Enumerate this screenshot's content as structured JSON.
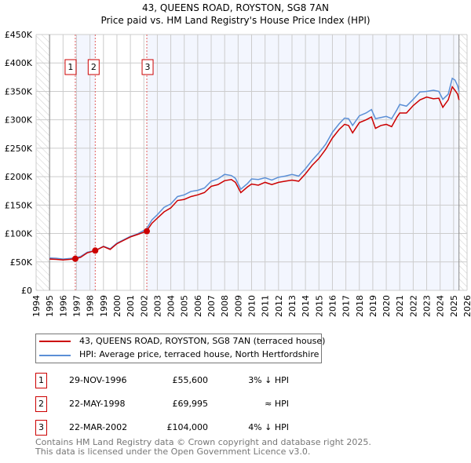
{
  "chart_data": {
    "type": "line",
    "title": "43, QUEENS ROAD, ROYSTON, SG8 7AN",
    "subtitle": "Price paid vs. HM Land Registry's House Price Index (HPI)",
    "xlim": [
      1994,
      2026
    ],
    "ylim": [
      0,
      450000
    ],
    "x_ticks": [
      "1994",
      "1995",
      "1996",
      "1997",
      "1998",
      "1999",
      "2000",
      "2001",
      "2002",
      "2003",
      "2004",
      "2005",
      "2006",
      "2007",
      "2008",
      "2009",
      "2010",
      "2011",
      "2012",
      "2013",
      "2014",
      "2015",
      "2016",
      "2017",
      "2018",
      "2019",
      "2020",
      "2021",
      "2022",
      "2023",
      "2024",
      "2025",
      "2026"
    ],
    "y_ticks": [
      {
        "v": 0,
        "l": "£0"
      },
      {
        "v": 50000,
        "l": "£50K"
      },
      {
        "v": 100000,
        "l": "£100K"
      },
      {
        "v": 150000,
        "l": "£150K"
      },
      {
        "v": 200000,
        "l": "£200K"
      },
      {
        "v": 250000,
        "l": "£250K"
      },
      {
        "v": 300000,
        "l": "£300K"
      },
      {
        "v": 350000,
        "l": "£350K"
      },
      {
        "v": 400000,
        "l": "£400K"
      },
      {
        "v": 450000,
        "l": "£450K"
      }
    ],
    "grid": true,
    "data_end": 2025.4,
    "series": [
      {
        "name": "43, QUEENS ROAD, ROYSTON, SG8 7AN (terraced house)",
        "color": "#cc0000",
        "x": [
          1995,
          1995.5,
          1996,
          1996.5,
          1996.9,
          1997.3,
          1997.8,
          1998.4,
          1999,
          1999.5,
          2000,
          2000.5,
          2001,
          2001.5,
          2002.2,
          2002.6,
          2003,
          2003.5,
          2004,
          2004.5,
          2005,
          2005.5,
          2006,
          2006.5,
          2007,
          2007.5,
          2008,
          2008.5,
          2008.8,
          2009.2,
          2009.7,
          2010,
          2010.5,
          2011,
          2011.5,
          2012,
          2012.5,
          2013,
          2013.5,
          2014,
          2014.5,
          2015,
          2015.5,
          2016,
          2016.5,
          2016.9,
          2017.2,
          2017.5,
          2018,
          2018.5,
          2018.9,
          2019.2,
          2019.6,
          2020,
          2020.4,
          2020.8,
          2021,
          2021.5,
          2022,
          2022.5,
          2023,
          2023.5,
          2023.9,
          2024.2,
          2024.6,
          2024.9,
          2025.1,
          2025.3,
          2025.4
        ],
        "y": [
          55000,
          54500,
          53500,
          54500,
          55600,
          58000,
          66000,
          69995,
          77000,
          72000,
          82000,
          88000,
          94000,
          98000,
          104000,
          118000,
          127000,
          138000,
          145000,
          158000,
          160000,
          165000,
          168000,
          172000,
          183000,
          186000,
          193000,
          195000,
          190000,
          172000,
          182000,
          187000,
          185000,
          190000,
          186000,
          190000,
          192000,
          194000,
          192000,
          205000,
          220000,
          232000,
          248000,
          268000,
          283000,
          292000,
          290000,
          277000,
          295000,
          300000,
          305000,
          285000,
          290000,
          292000,
          288000,
          305000,
          312000,
          312000,
          325000,
          335000,
          340000,
          337000,
          338000,
          322000,
          335000,
          358000,
          352000,
          345000,
          335000
        ]
      },
      {
        "name": "HPI: Average price, terraced house, North Hertfordshire",
        "color": "#5b8fd6",
        "x": [
          1995,
          1995.5,
          1996,
          1996.5,
          1996.9,
          1997.3,
          1997.8,
          1998.4,
          1999,
          1999.5,
          2000,
          2000.5,
          2001,
          2001.5,
          2002.2,
          2002.6,
          2003,
          2003.5,
          2004,
          2004.5,
          2005,
          2005.5,
          2006,
          2006.5,
          2007,
          2007.5,
          2008,
          2008.5,
          2008.8,
          2009.2,
          2009.7,
          2010,
          2010.5,
          2011,
          2011.5,
          2012,
          2012.5,
          2013,
          2013.5,
          2014,
          2014.5,
          2015,
          2015.5,
          2016,
          2016.5,
          2016.9,
          2017.2,
          2017.5,
          2018,
          2018.5,
          2018.9,
          2019.2,
          2019.6,
          2020,
          2020.4,
          2020.8,
          2021,
          2021.5,
          2022,
          2022.5,
          2023,
          2023.5,
          2023.9,
          2024.2,
          2024.6,
          2024.9,
          2025.1,
          2025.3,
          2025.4
        ],
        "y": [
          57000,
          56500,
          55000,
          56000,
          57500,
          59500,
          67000,
          70000,
          77500,
          73000,
          83000,
          89000,
          95000,
          99000,
          108000,
          124000,
          133000,
          146000,
          152000,
          165000,
          168000,
          174000,
          176000,
          180000,
          192000,
          196000,
          204000,
          202000,
          197000,
          178000,
          188000,
          196000,
          195000,
          198000,
          194000,
          199000,
          201000,
          204000,
          201000,
          214000,
          229000,
          242000,
          257000,
          278000,
          293000,
          303000,
          302000,
          290000,
          307000,
          312000,
          318000,
          302000,
          304000,
          306000,
          302000,
          318000,
          327000,
          324000,
          336000,
          349000,
          350000,
          352000,
          350000,
          336000,
          345000,
          373000,
          370000,
          360000,
          350000
        ]
      }
    ],
    "sales": [
      {
        "n": "1",
        "x": 1996.91,
        "price": 55600,
        "date": "29-NOV-1996",
        "price_label": "£55,600",
        "hpi": "3% ↓ HPI"
      },
      {
        "n": "2",
        "x": 1998.39,
        "price": 69995,
        "date": "22-MAY-1998",
        "price_label": "£69,995",
        "hpi": "≈ HPI"
      },
      {
        "n": "3",
        "x": 2002.22,
        "price": 104000,
        "date": "22-MAR-2002",
        "price_label": "£104,000",
        "hpi": "4% ↓ HPI"
      }
    ],
    "legend_placement": "below"
  },
  "footer": {
    "line1": "Contains HM Land Registry data © Crown copyright and database right 2025.",
    "line2": "This data is licensed under the Open Government Licence v3.0."
  }
}
